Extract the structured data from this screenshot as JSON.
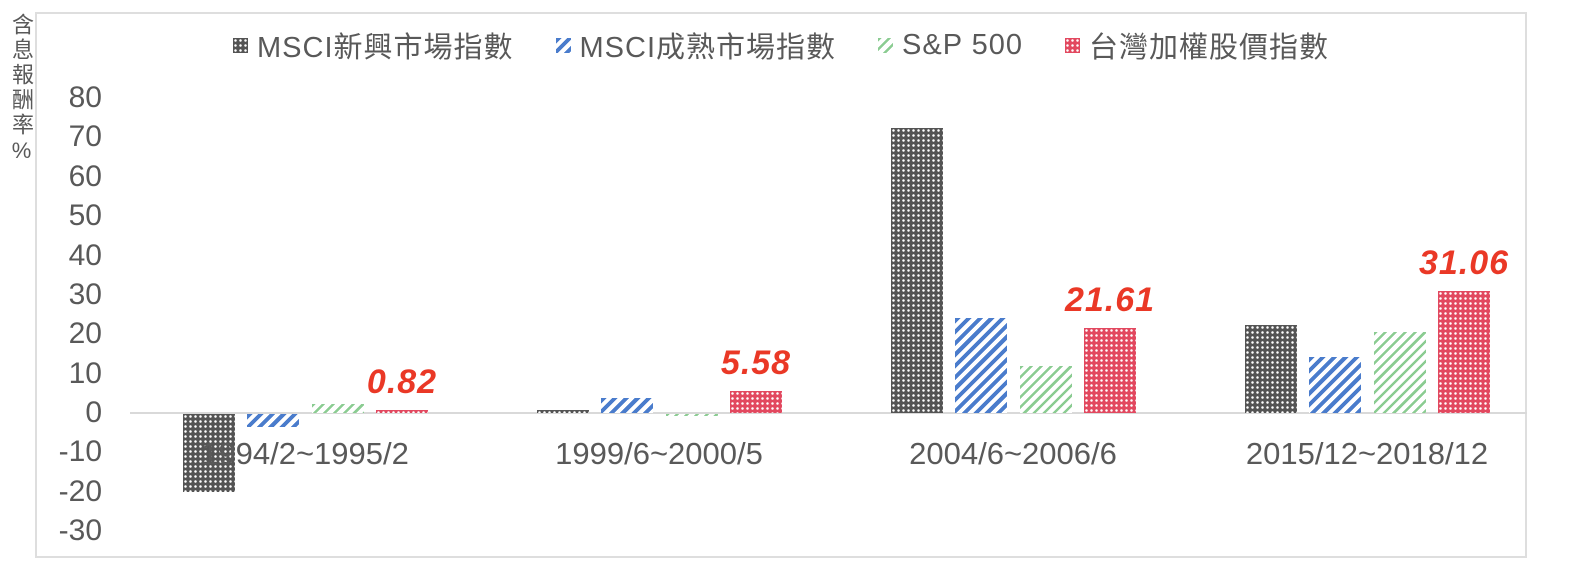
{
  "chart_data": {
    "type": "bar",
    "title": "",
    "ylabel": "含息報酬率%",
    "categories": [
      "1994/2~1995/2",
      "1999/6~2000/5",
      "2004/6~2006/6",
      "2015/12~2018/12"
    ],
    "series": [
      {
        "name": "MSCI新興市場指數",
        "pattern": "gray-dots",
        "color": "#545454",
        "values": [
          -19.7,
          0.8,
          72.3,
          22.4
        ]
      },
      {
        "name": "MSCI成熟市場指數",
        "pattern": "blue-stripes",
        "color": "#4a7ccc",
        "values": [
          -3.3,
          3.7,
          24.1,
          14.2
        ]
      },
      {
        "name": "S&P 500",
        "pattern": "green-stripes",
        "color": "#8bcc92",
        "values": [
          2.3,
          -0.5,
          11.9,
          20.6
        ]
      },
      {
        "name": "台灣加權股價指數",
        "pattern": "red-dots",
        "color": "#e2485f",
        "values": [
          0.82,
          5.58,
          21.61,
          31.06
        ]
      }
    ],
    "data_labels": {
      "series": "台灣加權股價指數",
      "series_index": 3,
      "values": [
        "0.82",
        "5.58",
        "21.61",
        "31.06"
      ],
      "color": "#ea3826"
    },
    "yticks": [
      80,
      70,
      60,
      50,
      40,
      30,
      20,
      10,
      0,
      -10,
      -20,
      -30
    ],
    "ylim": [
      -30,
      80
    ],
    "grid": "off",
    "legend_position": "top",
    "axis_color": "#d9d9d9",
    "text_color": "#595959"
  }
}
